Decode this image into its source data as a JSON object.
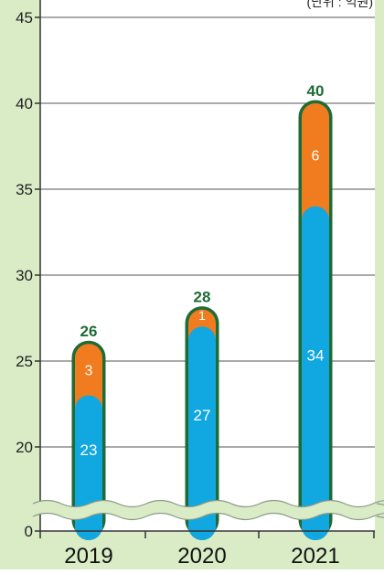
{
  "chart_data": {
    "type": "bar",
    "stacked": true,
    "unit_note": "(단위 : 억원)",
    "categories": [
      "2019",
      "2020",
      "2021"
    ],
    "series": [
      {
        "values": [
          23,
          27,
          34
        ],
        "color": "#11a7e0"
      },
      {
        "values": [
          3,
          1,
          6
        ],
        "color": "#f07c1f"
      }
    ],
    "totals": [
      26,
      28,
      40
    ],
    "yticks": [
      0,
      20,
      25,
      30,
      35,
      40,
      45
    ],
    "ylim": [
      0,
      45
    ],
    "axis_break": true,
    "grid": true,
    "colors": {
      "background": "#d9ecc6",
      "plot": "#ffffff",
      "outline": "#1f6b35",
      "total_label": "#1f6b35",
      "axis": "#333333"
    }
  }
}
